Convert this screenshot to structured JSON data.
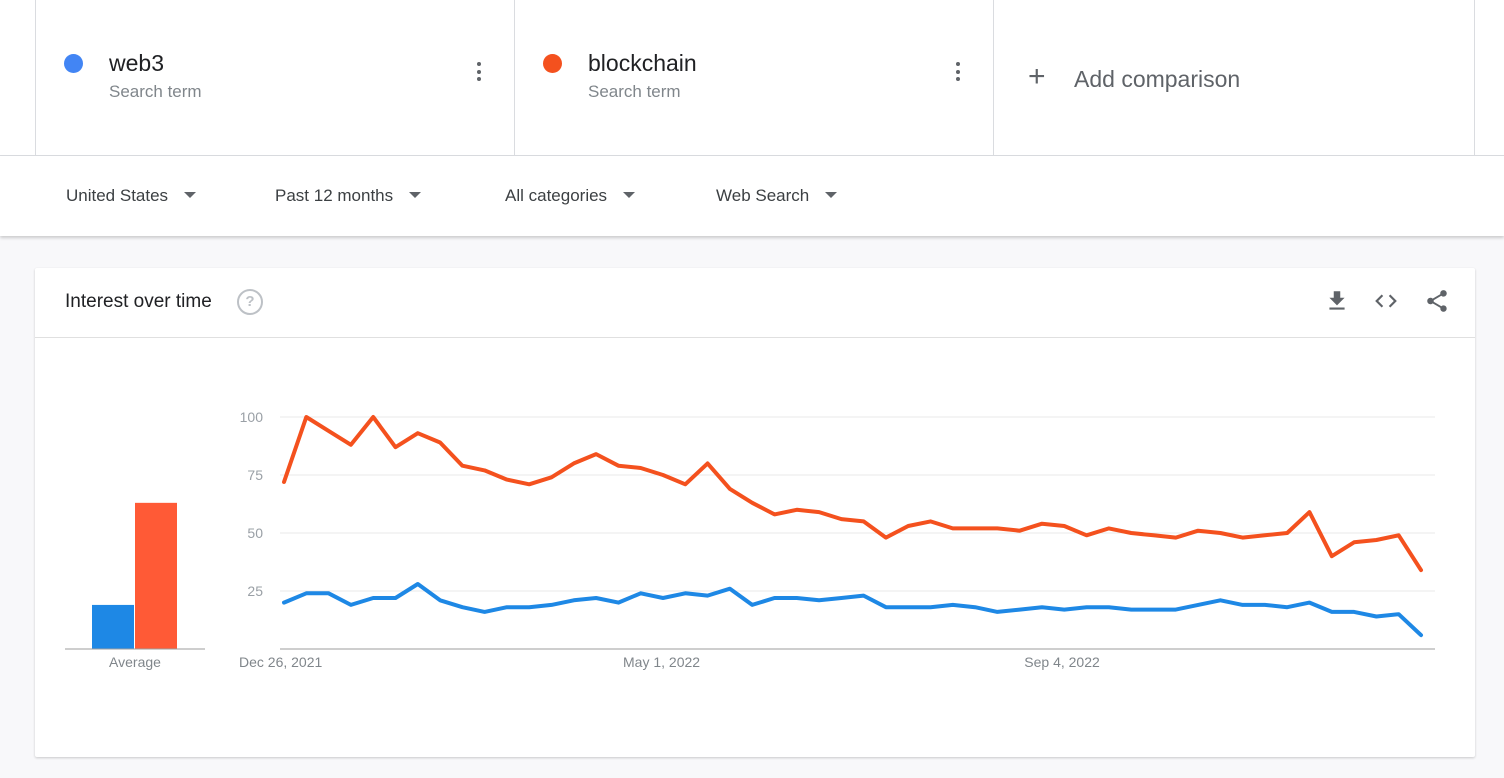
{
  "terms": [
    {
      "name": "web3",
      "subtitle": "Search term",
      "color": "#4285f4"
    },
    {
      "name": "blockchain",
      "subtitle": "Search term",
      "color": "#f4511e"
    }
  ],
  "add_comparison": {
    "icon": "plus-icon",
    "label": "Add comparison"
  },
  "filters": [
    {
      "label": "United States"
    },
    {
      "label": "Past 12 months"
    },
    {
      "label": "All categories"
    },
    {
      "label": "Web Search"
    }
  ],
  "card": {
    "title": "Interest over time",
    "icons": [
      "help-icon",
      "download-icon",
      "embed-code-icon",
      "share-icon"
    ]
  },
  "chart_data": {
    "type": "line",
    "x_start": "Dec 26, 2021",
    "x_tick_labels": [
      "Dec 26, 2021",
      "May 1, 2022",
      "Sep 4, 2022"
    ],
    "y_ticks": [
      25,
      50,
      75,
      100
    ],
    "ylim": [
      0,
      100
    ],
    "grid": true,
    "series": [
      {
        "name": "web3",
        "color": "#1e88e5",
        "values": [
          20,
          24,
          24,
          19,
          22,
          22,
          28,
          21,
          18,
          16,
          18,
          18,
          19,
          21,
          22,
          20,
          24,
          22,
          24,
          23,
          26,
          19,
          22,
          22,
          21,
          22,
          23,
          18,
          18,
          18,
          19,
          18,
          16,
          17,
          18,
          17,
          18,
          18,
          17,
          17,
          17,
          19,
          21,
          19,
          19,
          18,
          20,
          16,
          16,
          14,
          15,
          6
        ]
      },
      {
        "name": "blockchain",
        "color": "#f4511e",
        "values": [
          72,
          100,
          94,
          88,
          100,
          87,
          93,
          89,
          79,
          77,
          73,
          71,
          74,
          80,
          84,
          79,
          78,
          75,
          71,
          80,
          69,
          63,
          58,
          60,
          59,
          56,
          55,
          48,
          53,
          55,
          52,
          52,
          52,
          51,
          54,
          53,
          49,
          52,
          50,
          49,
          48,
          51,
          50,
          48,
          49,
          50,
          59,
          40,
          46,
          47,
          49,
          34
        ]
      }
    ],
    "averages": {
      "label": "Average",
      "values": [
        {
          "name": "web3",
          "value": 19,
          "color": "#1e88e5"
        },
        {
          "name": "blockchain",
          "value": 63,
          "color": "#ff5a36"
        }
      ]
    }
  }
}
